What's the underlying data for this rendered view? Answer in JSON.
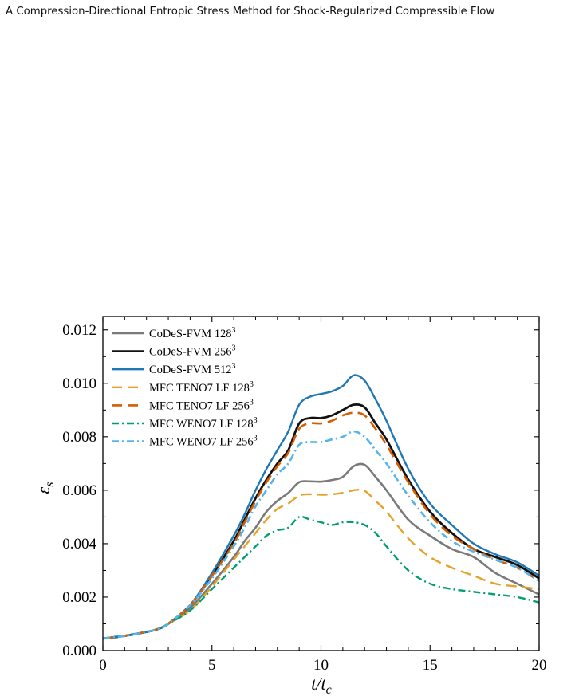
{
  "page": {
    "running_header": "A Compression-Directional Entropic Stress Method for Shock-Regularized Compressible Flow"
  },
  "chart_data": {
    "type": "line",
    "title": "",
    "xlabel_main": "t",
    "xlabel_sub": "c",
    "xlabel_slash": "/t",
    "ylabel_main": "ε",
    "ylabel_sub": "s",
    "xlim": [
      0,
      20
    ],
    "ylim": [
      0,
      0.0125
    ],
    "xticks": [
      0,
      5,
      10,
      15,
      20
    ],
    "xtick_labels": [
      "0",
      "5",
      "10",
      "15",
      "20"
    ],
    "yticks": [
      0,
      0.002,
      0.004,
      0.006,
      0.008,
      0.01,
      0.012
    ],
    "ytick_labels": [
      "0.000",
      "0.002",
      "0.004",
      "0.006",
      "0.008",
      "0.010",
      "0.012"
    ],
    "grid": false,
    "legend_position": "top-left",
    "x": [
      0,
      1,
      2,
      2.5,
      3,
      4,
      5,
      6,
      6.5,
      7,
      7.5,
      8,
      8.5,
      9,
      9.5,
      10,
      10.5,
      11,
      11.5,
      12,
      12.5,
      13,
      14,
      15,
      16,
      17,
      18,
      19,
      20
    ],
    "series": [
      {
        "name": "CoDeS-FVM 128",
        "sup": "3",
        "color": "#7a7a7a",
        "dash": "",
        "width": 2.6,
        "values": [
          0.00045,
          0.00055,
          0.0007,
          0.0008,
          0.001,
          0.0016,
          0.0025,
          0.0035,
          0.0041,
          0.0046,
          0.0052,
          0.0056,
          0.0059,
          0.0063,
          0.00633,
          0.00632,
          0.00638,
          0.0065,
          0.0069,
          0.00695,
          0.0065,
          0.006,
          0.0049,
          0.0043,
          0.0038,
          0.0035,
          0.0029,
          0.0025,
          0.0021
        ]
      },
      {
        "name": "CoDeS-FVM 256",
        "sup": "3",
        "color": "#111111",
        "dash": "",
        "width": 2.8,
        "values": [
          0.00045,
          0.00055,
          0.0007,
          0.0008,
          0.001,
          0.0017,
          0.0028,
          0.0041,
          0.0049,
          0.0057,
          0.0064,
          0.007,
          0.0075,
          0.0085,
          0.0087,
          0.0087,
          0.0088,
          0.009,
          0.0092,
          0.0091,
          0.0085,
          0.0079,
          0.0064,
          0.0052,
          0.0044,
          0.0038,
          0.0035,
          0.0032,
          0.0027
        ]
      },
      {
        "name": "CoDeS-FVM 512",
        "sup": "3",
        "color": "#1f77b4",
        "dash": "",
        "width": 2.4,
        "values": [
          0.00045,
          0.00055,
          0.0007,
          0.0008,
          0.001,
          0.0017,
          0.0029,
          0.0043,
          0.0051,
          0.006,
          0.0068,
          0.0075,
          0.0082,
          0.0092,
          0.0095,
          0.0096,
          0.0097,
          0.0099,
          0.0103,
          0.0101,
          0.0094,
          0.0086,
          0.0068,
          0.0055,
          0.0047,
          0.004,
          0.0036,
          0.0033,
          0.0028
        ]
      },
      {
        "name": "MFC TENO7 LF 128",
        "sup": "3",
        "color": "#e5a32a",
        "dash": "13,7",
        "width": 2.4,
        "values": [
          0.00045,
          0.00055,
          0.0007,
          0.0008,
          0.001,
          0.0015,
          0.0024,
          0.0034,
          0.0039,
          0.0044,
          0.0049,
          0.0053,
          0.0055,
          0.0058,
          0.00585,
          0.00583,
          0.00585,
          0.0059,
          0.006,
          0.00598,
          0.0056,
          0.0052,
          0.0042,
          0.0035,
          0.0031,
          0.0028,
          0.0025,
          0.0024,
          0.0023
        ]
      },
      {
        "name": "MFC TENO7 LF 256",
        "sup": "3",
        "color": "#d55e00",
        "dash": "13,7",
        "width": 2.6,
        "values": [
          0.00045,
          0.00055,
          0.0007,
          0.0008,
          0.001,
          0.0017,
          0.0028,
          0.004,
          0.0048,
          0.0056,
          0.0063,
          0.0069,
          0.0074,
          0.0083,
          0.0085,
          0.0085,
          0.0086,
          0.0088,
          0.0089,
          0.0088,
          0.0083,
          0.0077,
          0.0063,
          0.0051,
          0.0043,
          0.0038,
          0.0034,
          0.0031,
          0.0026
        ]
      },
      {
        "name": "MFC WENO7 LF 128",
        "sup": "3",
        "color": "#009e73",
        "dash": "9,4,2,4",
        "width": 2.4,
        "values": [
          0.00045,
          0.00055,
          0.0007,
          0.0008,
          0.001,
          0.0015,
          0.0023,
          0.0031,
          0.0035,
          0.0039,
          0.0043,
          0.0045,
          0.0046,
          0.005,
          0.0049,
          0.0048,
          0.0047,
          0.0048,
          0.0048,
          0.0047,
          0.0044,
          0.0039,
          0.003,
          0.0025,
          0.0023,
          0.0022,
          0.0021,
          0.002,
          0.0018
        ]
      },
      {
        "name": "MFC WENO7 LF 256",
        "sup": "3",
        "color": "#56b4e9",
        "dash": "9,4,2,4",
        "width": 2.6,
        "values": [
          0.00045,
          0.00055,
          0.0007,
          0.0008,
          0.001,
          0.0017,
          0.0027,
          0.0039,
          0.0046,
          0.0054,
          0.006,
          0.0066,
          0.007,
          0.0077,
          0.0078,
          0.0078,
          0.0079,
          0.008,
          0.0082,
          0.008,
          0.0075,
          0.007,
          0.0058,
          0.0048,
          0.0041,
          0.0037,
          0.0034,
          0.0031,
          0.0026
        ]
      }
    ]
  }
}
